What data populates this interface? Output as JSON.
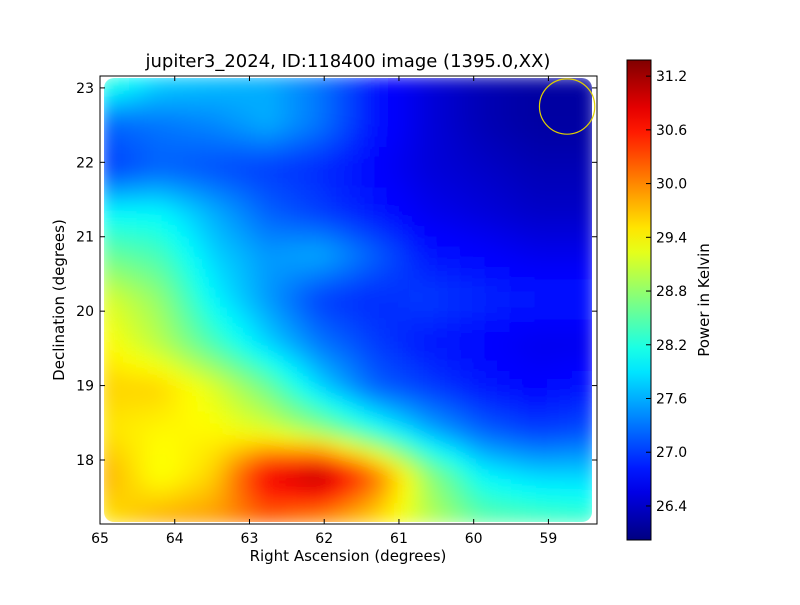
{
  "chart_data": {
    "type": "heatmap",
    "title": "jupiter3_2024, ID:118400 image (1395.0,XX)",
    "xlabel": "Right Ascension (degrees)",
    "ylabel": "Declination (degrees)",
    "xlim": [
      65,
      58.35
    ],
    "ylim": [
      17.14,
      23.16
    ],
    "xticks": [
      65,
      64,
      63,
      62,
      61,
      60,
      59
    ],
    "xtick_labels": [
      "65",
      "64",
      "63",
      "62",
      "61",
      "60",
      "59"
    ],
    "yticks": [
      18,
      19,
      20,
      21,
      22,
      23
    ],
    "ytick_labels": [
      "18",
      "19",
      "20",
      "21",
      "22",
      "23"
    ],
    "colormap": "jet",
    "colorbar": {
      "label": "Power in Kelvin",
      "range": [
        26.02,
        31.38
      ],
      "ticks": [
        26.4,
        27.0,
        27.6,
        28.2,
        28.8,
        29.4,
        30.0,
        30.6,
        31.2
      ],
      "tick_labels": [
        "26.4",
        "27.0",
        "27.6",
        "28.2",
        "28.8",
        "29.4",
        "30.0",
        "30.6",
        "31.2"
      ]
    },
    "grid_ra": [
      64.8,
      64.15,
      63.5,
      62.85,
      62.2,
      61.55,
      60.9,
      60.25,
      59.6,
      58.6
    ],
    "grid_dec": [
      23.0,
      22.5,
      22.0,
      21.4,
      20.8,
      20.2,
      19.6,
      19.0,
      18.4,
      17.8,
      17.3
    ],
    "values": [
      [
        28.3,
        27.8,
        27.7,
        27.6,
        27.3,
        26.8,
        26.5,
        26.3,
        26.2,
        26.2
      ],
      [
        27.2,
        27.3,
        27.4,
        27.6,
        27.3,
        26.8,
        26.5,
        26.3,
        26.2,
        26.2
      ],
      [
        27.0,
        27.2,
        27.1,
        27.0,
        26.9,
        26.7,
        26.5,
        26.4,
        26.3,
        26.3
      ],
      [
        28.0,
        28.0,
        27.6,
        27.2,
        27.0,
        26.8,
        26.6,
        26.5,
        26.4,
        26.4
      ],
      [
        28.6,
        28.4,
        27.8,
        27.5,
        27.6,
        27.2,
        26.8,
        26.7,
        26.6,
        26.6
      ],
      [
        29.2,
        28.8,
        28.0,
        27.5,
        27.0,
        26.9,
        27.0,
        26.9,
        26.8,
        26.8
      ],
      [
        29.4,
        29.0,
        28.4,
        27.8,
        27.3,
        27.0,
        26.8,
        26.7,
        26.6,
        26.6
      ],
      [
        29.6,
        29.6,
        29.2,
        28.6,
        27.8,
        27.2,
        27.0,
        26.8,
        26.7,
        26.8
      ],
      [
        29.5,
        29.4,
        29.4,
        29.2,
        28.8,
        28.2,
        27.6,
        27.2,
        27.0,
        27.1
      ],
      [
        29.8,
        29.3,
        29.6,
        30.8,
        31.2,
        30.2,
        28.8,
        28.0,
        27.8,
        27.8
      ],
      [
        29.5,
        29.8,
        29.9,
        30.2,
        30.0,
        29.6,
        29.0,
        28.5,
        28.4,
        28.3
      ]
    ],
    "annotations": [
      {
        "type": "circle",
        "ra": 58.75,
        "dec": 22.75,
        "radius_deg": 0.37,
        "color": "#e0d000"
      }
    ],
    "grid": false
  }
}
